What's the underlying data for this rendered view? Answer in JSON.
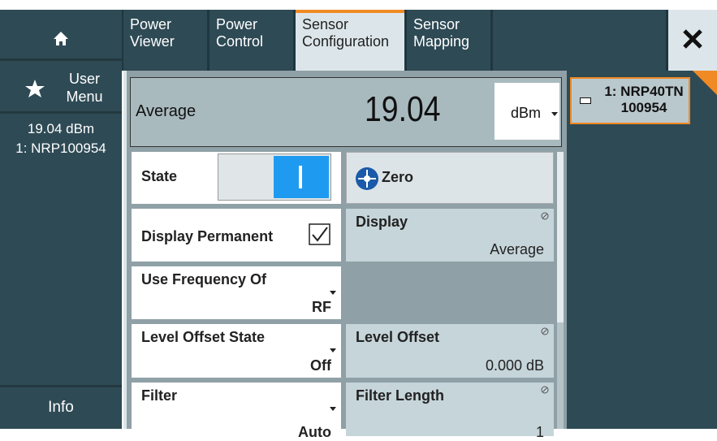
{
  "sidebar": {
    "user_menu": "User Menu",
    "status_level": "19.04 dBm",
    "status_sensor": "1: NRP100954",
    "info": "Info"
  },
  "tabs": [
    "Power Viewer",
    "Power Control",
    "Sensor Configuration",
    "Sensor Mapping"
  ],
  "measurement": {
    "label": "Average",
    "value": "19.04",
    "unit": "dBm"
  },
  "sensor": {
    "name": "1: NRP40TN",
    "serial": "100954"
  },
  "settings": {
    "state": {
      "label": "State"
    },
    "zero": {
      "label": "Zero"
    },
    "display_permanent": {
      "label": "Display Permanent"
    },
    "display": {
      "label": "Display",
      "value": "Average"
    },
    "use_frequency_of": {
      "label": "Use Frequency Of",
      "value": "RF"
    },
    "level_offset_state": {
      "label": "Level Offset State",
      "value": "Off"
    },
    "level_offset": {
      "label": "Level Offset",
      "value": "0.000 dB"
    },
    "filter": {
      "label": "Filter",
      "value": "Auto"
    },
    "filter_length": {
      "label": "Filter Length",
      "value": "1"
    }
  }
}
